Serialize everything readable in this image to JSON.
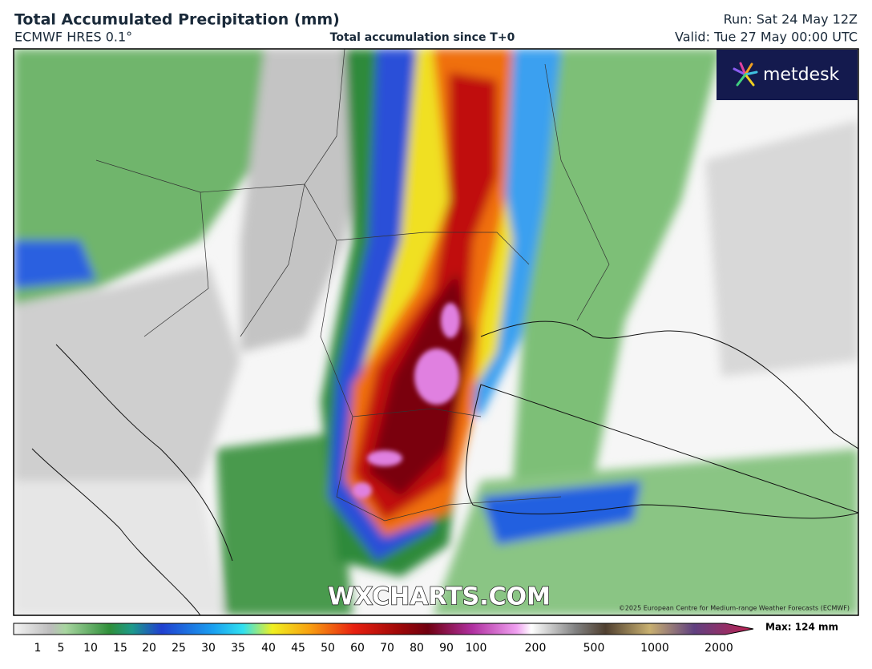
{
  "header": {
    "title": "Total Accumulated Precipitation (mm)",
    "model": "ECMWF HRES 0.1°",
    "subtitle": "Total accumulation since T+0",
    "run": "Run: Sat 24 May 12Z",
    "valid": "Valid: Tue 27 May 00:00 UTC"
  },
  "logo": "metdesk",
  "watermark": "WXCHARTS.COM",
  "copyright": "©2025 European Centre for Medium-range Weather Forecasts (ECMWF)",
  "legend": {
    "ticks": [
      1,
      5,
      10,
      15,
      20,
      25,
      30,
      35,
      40,
      45,
      50,
      60,
      70,
      80,
      90,
      100,
      200,
      500,
      1000,
      2000
    ],
    "max": "Max: 124 mm"
  }
}
